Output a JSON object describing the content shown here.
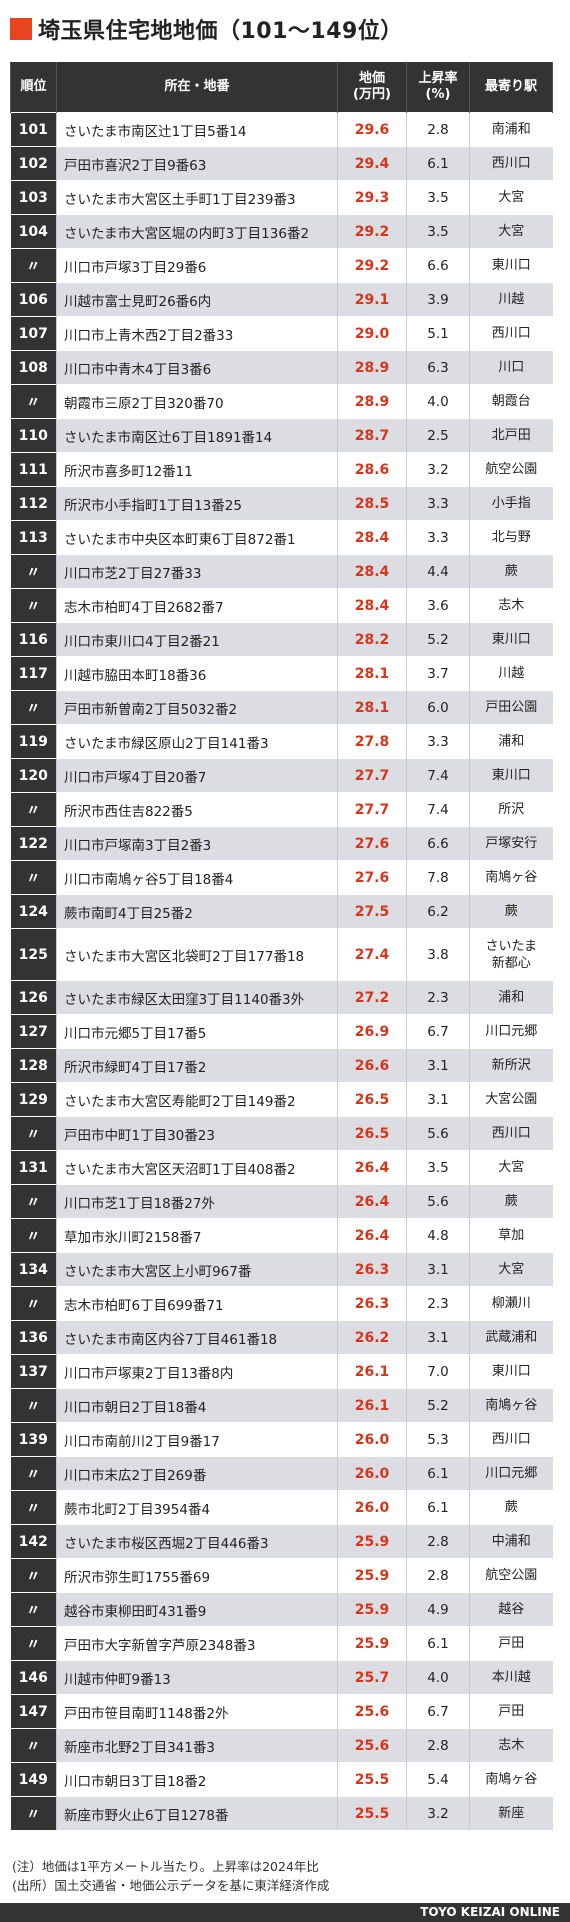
{
  "title": "埼玉県住宅地地価（101〜149位）",
  "headers": {
    "rank": "順位",
    "address": "所在・地番",
    "price": "地価\n(万円)",
    "rate": "上昇率\n(%)",
    "station": "最寄り駅"
  },
  "rows": [
    {
      "rank": "101",
      "address": "さいたま市南区辻1丁目5番14",
      "price": "29.6",
      "rate": "2.8",
      "station": "南浦和"
    },
    {
      "rank": "102",
      "address": "戸田市喜沢2丁目9番63",
      "price": "29.4",
      "rate": "6.1",
      "station": "西川口"
    },
    {
      "rank": "103",
      "address": "さいたま市大宮区土手町1丁目239番3",
      "price": "29.3",
      "rate": "3.5",
      "station": "大宮"
    },
    {
      "rank": "104",
      "address": "さいたま市大宮区堀の内町3丁目136番2",
      "price": "29.2",
      "rate": "3.5",
      "station": "大宮"
    },
    {
      "rank": "〃",
      "address": "川口市戸塚3丁目29番6",
      "price": "29.2",
      "rate": "6.6",
      "station": "東川口"
    },
    {
      "rank": "106",
      "address": "川越市富士見町26番6内",
      "price": "29.1",
      "rate": "3.9",
      "station": "川越"
    },
    {
      "rank": "107",
      "address": "川口市上青木西2丁目2番33",
      "price": "29.0",
      "rate": "5.1",
      "station": "西川口"
    },
    {
      "rank": "108",
      "address": "川口市中青木4丁目3番6",
      "price": "28.9",
      "rate": "6.3",
      "station": "川口"
    },
    {
      "rank": "〃",
      "address": "朝霞市三原2丁目320番70",
      "price": "28.9",
      "rate": "4.0",
      "station": "朝霞台"
    },
    {
      "rank": "110",
      "address": "さいたま市南区辻6丁目1891番14",
      "price": "28.7",
      "rate": "2.5",
      "station": "北戸田"
    },
    {
      "rank": "111",
      "address": "所沢市喜多町12番11",
      "price": "28.6",
      "rate": "3.2",
      "station": "航空公園"
    },
    {
      "rank": "112",
      "address": "所沢市小手指町1丁目13番25",
      "price": "28.5",
      "rate": "3.3",
      "station": "小手指"
    },
    {
      "rank": "113",
      "address": "さいたま市中央区本町東6丁目872番1",
      "price": "28.4",
      "rate": "3.3",
      "station": "北与野"
    },
    {
      "rank": "〃",
      "address": "川口市芝2丁目27番33",
      "price": "28.4",
      "rate": "4.4",
      "station": "蕨"
    },
    {
      "rank": "〃",
      "address": "志木市柏町4丁目2682番7",
      "price": "28.4",
      "rate": "3.6",
      "station": "志木"
    },
    {
      "rank": "116",
      "address": "川口市東川口4丁目2番21",
      "price": "28.2",
      "rate": "5.2",
      "station": "東川口"
    },
    {
      "rank": "117",
      "address": "川越市脇田本町18番36",
      "price": "28.1",
      "rate": "3.7",
      "station": "川越"
    },
    {
      "rank": "〃",
      "address": "戸田市新曽南2丁目5032番2",
      "price": "28.1",
      "rate": "6.0",
      "station": "戸田公園"
    },
    {
      "rank": "119",
      "address": "さいたま市緑区原山2丁目141番3",
      "price": "27.8",
      "rate": "3.3",
      "station": "浦和"
    },
    {
      "rank": "120",
      "address": "川口市戸塚4丁目20番7",
      "price": "27.7",
      "rate": "7.4",
      "station": "東川口"
    },
    {
      "rank": "〃",
      "address": "所沢市西住吉822番5",
      "price": "27.7",
      "rate": "7.4",
      "station": "所沢"
    },
    {
      "rank": "122",
      "address": "川口市戸塚南3丁目2番3",
      "price": "27.6",
      "rate": "6.6",
      "station": "戸塚安行"
    },
    {
      "rank": "〃",
      "address": "川口市南鳩ヶ谷5丁目18番4",
      "price": "27.6",
      "rate": "7.8",
      "station": "南鳩ヶ谷"
    },
    {
      "rank": "124",
      "address": "蕨市南町4丁目25番2",
      "price": "27.5",
      "rate": "6.2",
      "station": "蕨"
    },
    {
      "rank": "125",
      "address": "さいたま市大宮区北袋町2丁目177番18",
      "price": "27.4",
      "rate": "3.8",
      "station": "さいたま\n新都心",
      "tall": true
    },
    {
      "rank": "126",
      "address": "さいたま市緑区太田窪3丁目1140番3外",
      "price": "27.2",
      "rate": "2.3",
      "station": "浦和"
    },
    {
      "rank": "127",
      "address": "川口市元郷5丁目17番5",
      "price": "26.9",
      "rate": "6.7",
      "station": "川口元郷"
    },
    {
      "rank": "128",
      "address": "所沢市緑町4丁目17番2",
      "price": "26.6",
      "rate": "3.1",
      "station": "新所沢"
    },
    {
      "rank": "129",
      "address": "さいたま市大宮区寿能町2丁目149番2",
      "price": "26.5",
      "rate": "3.1",
      "station": "大宮公園"
    },
    {
      "rank": "〃",
      "address": "戸田市中町1丁目30番23",
      "price": "26.5",
      "rate": "5.6",
      "station": "西川口"
    },
    {
      "rank": "131",
      "address": "さいたま市大宮区天沼町1丁目408番2",
      "price": "26.4",
      "rate": "3.5",
      "station": "大宮"
    },
    {
      "rank": "〃",
      "address": "川口市芝1丁目18番27外",
      "price": "26.4",
      "rate": "5.6",
      "station": "蕨"
    },
    {
      "rank": "〃",
      "address": "草加市氷川町2158番7",
      "price": "26.4",
      "rate": "4.8",
      "station": "草加"
    },
    {
      "rank": "134",
      "address": "さいたま市大宮区上小町967番",
      "price": "26.3",
      "rate": "3.1",
      "station": "大宮"
    },
    {
      "rank": "〃",
      "address": "志木市柏町6丁目699番71",
      "price": "26.3",
      "rate": "2.3",
      "station": "柳瀬川"
    },
    {
      "rank": "136",
      "address": "さいたま市南区内谷7丁目461番18",
      "price": "26.2",
      "rate": "3.1",
      "station": "武蔵浦和"
    },
    {
      "rank": "137",
      "address": "川口市戸塚東2丁目13番8内",
      "price": "26.1",
      "rate": "7.0",
      "station": "東川口"
    },
    {
      "rank": "〃",
      "address": "川口市朝日2丁目18番4",
      "price": "26.1",
      "rate": "5.2",
      "station": "南鳩ヶ谷"
    },
    {
      "rank": "139",
      "address": "川口市南前川2丁目9番17",
      "price": "26.0",
      "rate": "5.3",
      "station": "西川口"
    },
    {
      "rank": "〃",
      "address": "川口市末広2丁目269番",
      "price": "26.0",
      "rate": "6.1",
      "station": "川口元郷"
    },
    {
      "rank": "〃",
      "address": "蕨市北町2丁目3954番4",
      "price": "26.0",
      "rate": "6.1",
      "station": "蕨"
    },
    {
      "rank": "142",
      "address": "さいたま市桜区西堀2丁目446番3",
      "price": "25.9",
      "rate": "2.8",
      "station": "中浦和"
    },
    {
      "rank": "〃",
      "address": "所沢市弥生町1755番69",
      "price": "25.9",
      "rate": "2.8",
      "station": "航空公園"
    },
    {
      "rank": "〃",
      "address": "越谷市東柳田町431番9",
      "price": "25.9",
      "rate": "4.9",
      "station": "越谷"
    },
    {
      "rank": "〃",
      "address": "戸田市大字新曽字芦原2348番3",
      "price": "25.9",
      "rate": "6.1",
      "station": "戸田"
    },
    {
      "rank": "146",
      "address": "川越市仲町9番13",
      "price": "25.7",
      "rate": "4.0",
      "station": "本川越"
    },
    {
      "rank": "147",
      "address": "戸田市笹目南町1148番2外",
      "price": "25.6",
      "rate": "6.7",
      "station": "戸田"
    },
    {
      "rank": "〃",
      "address": "新座市北野2丁目341番3",
      "price": "25.6",
      "rate": "2.8",
      "station": "志木"
    },
    {
      "rank": "149",
      "address": "川口市朝日3丁目18番2",
      "price": "25.5",
      "rate": "5.4",
      "station": "南鳩ヶ谷"
    },
    {
      "rank": "〃",
      "address": "新座市野火止6丁目1278番",
      "price": "25.5",
      "rate": "3.2",
      "station": "新座"
    }
  ],
  "notes": [
    "(注）地価は1平方メートル当たり。上昇率は2024年比",
    "(出所）国土交通省・地価公示データを基に東洋経済作成"
  ],
  "brand": "TOYO KEIZAI ONLINE",
  "colors": {
    "accent": "#e8441f",
    "price": "#d9351a",
    "header_bg": "#333333",
    "stripe": "#dcdde3"
  }
}
